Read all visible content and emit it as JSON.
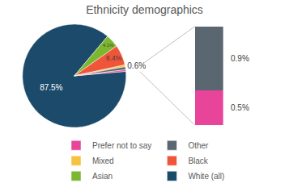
{
  "chart_data": {
    "type": "pie",
    "title": "Ethnicity demographics",
    "categories": [
      "White (all)",
      "Asian",
      "Black",
      "Mixed",
      "Other",
      "Prefer not to say"
    ],
    "values": [
      87.5,
      4.1,
      6.4,
      0.6,
      0.9,
      0.5
    ],
    "value_labels": [
      "87.5%",
      "4.1%",
      "6.4%",
      "0.6%",
      "0.9%",
      "0.5%"
    ],
    "colors": [
      "#1b4a6a",
      "#7cb82f",
      "#f0553a",
      "#f5c242",
      "#5a6670",
      "#e8449a"
    ],
    "data_labels": true,
    "legend": "bottom",
    "ylim": [
      0,
      1.4
    ],
    "tick_labels": false
  }
}
